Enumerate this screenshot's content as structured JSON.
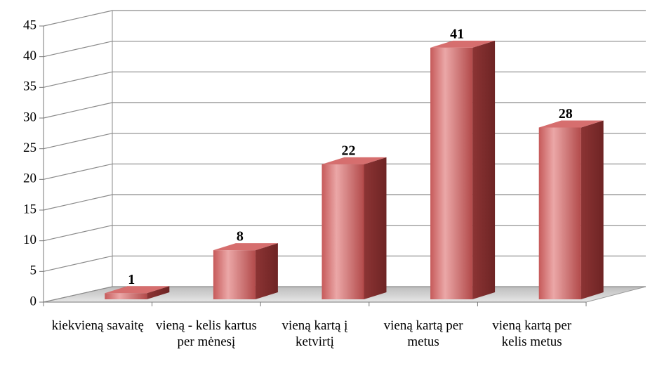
{
  "chart_data": {
    "type": "bar3d",
    "categories": [
      "kiekvieną savaitę",
      "vieną - kelis kartus per mėnesį",
      "vieną kartą į ketvirtį",
      "vieną kartą per metus",
      "vieną kartą per kelis metus"
    ],
    "values": [
      1,
      8,
      22,
      41,
      28
    ],
    "color": "#c0504d",
    "ylim": [
      0,
      45
    ],
    "yticks": [
      0,
      5,
      10,
      15,
      20,
      25,
      30,
      35,
      40,
      45
    ],
    "grid": true
  }
}
